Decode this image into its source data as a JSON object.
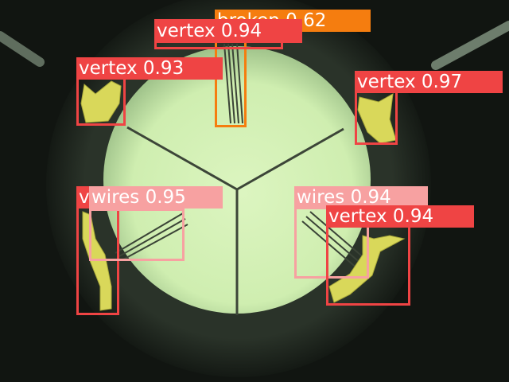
{
  "scene": {
    "description_icons": [
      "microscope-field-of-view",
      "specimen-grid",
      "vertex-pads",
      "wire-traces"
    ],
    "colors": {
      "background": "#0f130f",
      "field": "#d8f2ba",
      "vertex_pad": "#d9d85a",
      "trace": "#3c4538",
      "rod": "#6d7d6c"
    }
  },
  "detections": [
    {
      "id": "broken-1",
      "label": "broken",
      "score": "0.62",
      "color": "#f57d0f",
      "text_color": "#ffffff"
    },
    {
      "id": "vertex-1",
      "label": "vertex",
      "score": "0.94",
      "color": "#ef4444",
      "text_color": "#ffffff"
    },
    {
      "id": "vertex-2",
      "label": "vertex",
      "score": "0.93",
      "color": "#ef4444",
      "text_color": "#ffffff"
    },
    {
      "id": "vertex-3",
      "label": "vertex",
      "score": "0.97",
      "color": "#ef4444",
      "text_color": "#ffffff"
    },
    {
      "id": "vertex-4",
      "label": "v",
      "score": "",
      "color": "#ef4444",
      "text_color": "#ffffff"
    },
    {
      "id": "wires-1",
      "label": "wires",
      "score": "0.95",
      "color": "#f7a1a1",
      "text_color": "#ffffff"
    },
    {
      "id": "wires-2",
      "label": "wires",
      "score": "0.94",
      "color": "#f7a1a1",
      "text_color": "#ffffff"
    },
    {
      "id": "vertex-5",
      "label": "vertex",
      "score": "0.94",
      "color": "#ef4444",
      "text_color": "#ffffff"
    }
  ]
}
